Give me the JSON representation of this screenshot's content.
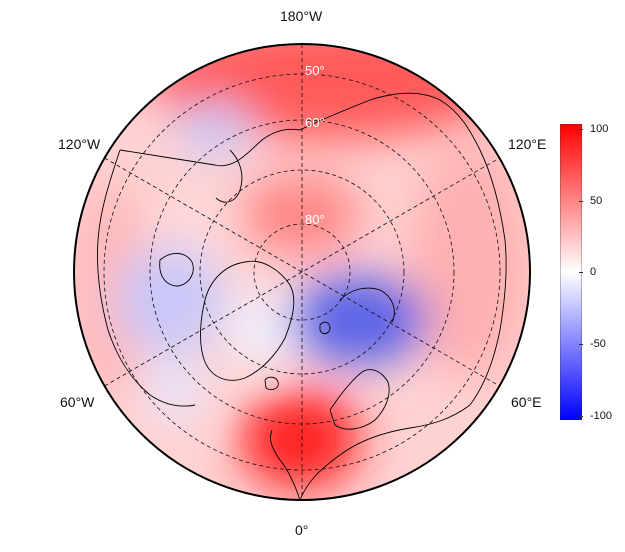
{
  "map": {
    "projection": "north-polar-stereographic",
    "longitude_labels": [
      "180°W",
      "120°W",
      "120°E",
      "60°W",
      "60°E",
      "0°"
    ],
    "latitude_labels": [
      "50°",
      "60°",
      "80°"
    ],
    "graticule_style": "dashed"
  },
  "colorbar": {
    "ticks": [
      "100",
      "50",
      "0",
      "-50",
      "-100"
    ],
    "range": [
      -100,
      100
    ],
    "colors": {
      "min": "#0000ff",
      "mid": "#ffffff",
      "max": "#ff0000"
    }
  },
  "field": {
    "description_of_anomalies": [
      {
        "lon": 160,
        "lat": 50,
        "value": 75
      },
      {
        "lon": 0,
        "lat": 55,
        "value": 100
      },
      {
        "lon": 40,
        "lat": 72,
        "value": -60
      },
      {
        "lon": 290,
        "lat": 70,
        "value": -25
      },
      {
        "lon": 240,
        "lat": 62,
        "value": -20
      },
      {
        "lon": 180,
        "lat": 88,
        "value": 55
      }
    ]
  }
}
